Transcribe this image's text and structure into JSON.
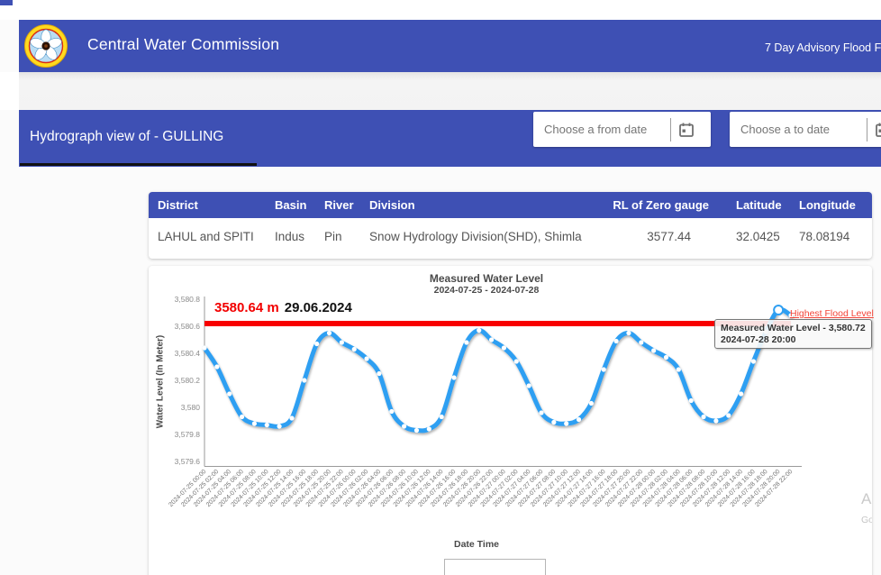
{
  "header": {
    "brand": "Central Water Commission",
    "nav_advisory": "7 Day Advisory Flood F",
    "accent_color": "#3e50b4"
  },
  "subheader": {
    "title": "Hydrograph view of - GULLING",
    "from_date_placeholder": "Choose a from date",
    "to_date_placeholder": "Choose a to date"
  },
  "station_table": {
    "columns": [
      "District",
      "Basin",
      "River",
      "Division",
      "RL of Zero gauge",
      "Latitude",
      "Longitude"
    ],
    "rows": [
      [
        "LAHUL and SPITI",
        "Indus",
        "Pin",
        "Snow Hydrology Division(SHD), Shimla",
        "3577.44",
        "32.0425",
        "78.08194"
      ]
    ]
  },
  "chart_data": {
    "type": "line",
    "title": "Measured Water Level",
    "subtitle": "2024-07-25 - 2024-07-28",
    "xlabel": "Date Time",
    "ylabel": "Water Level (In Meter)",
    "ylim": [
      3579.6,
      3580.8
    ],
    "y_tick_labels": [
      "3,580.8",
      "3,580.6",
      "3,580.4",
      "3,580.2",
      "3,580",
      "3,579.8",
      "3,579.6"
    ],
    "line_color": "#2f9ff2",
    "marker_color": "#ffffff",
    "grid": false,
    "legend_position": "bottom-center",
    "flood_level": {
      "value": 3580.64,
      "label": "Highest Flood Level",
      "annotation_value": "3580.64 m",
      "annotation_date": "29.06.2024",
      "color": "#f80000"
    },
    "tooltip": {
      "line1": "Measured Water Level - 3,580.72",
      "line2": "2024-07-28 20:00"
    },
    "hover_point_index": 46,
    "x": [
      "2024-07-25 00:00",
      "2024-07-25 02:00",
      "2024-07-25 04:00",
      "2024-07-25 06:00",
      "2024-07-25 08:00",
      "2024-07-25 10:00",
      "2024-07-25 12:00",
      "2024-07-25 14:00",
      "2024-07-25 16:00",
      "2024-07-25 18:00",
      "2024-07-25 20:00",
      "2024-07-25 22:00",
      "2024-07-26 00:00",
      "2024-07-26 02:00",
      "2024-07-26 04:00",
      "2024-07-26 06:00",
      "2024-07-26 08:00",
      "2024-07-26 10:00",
      "2024-07-26 12:00",
      "2024-07-26 14:00",
      "2024-07-26 16:00",
      "2024-07-26 18:00",
      "2024-07-26 20:00",
      "2024-07-26 22:00",
      "2024-07-27 00:00",
      "2024-07-27 02:00",
      "2024-07-27 04:00",
      "2024-07-27 06:00",
      "2024-07-27 08:00",
      "2024-07-27 10:00",
      "2024-07-27 12:00",
      "2024-07-27 14:00",
      "2024-07-27 16:00",
      "2024-07-27 18:00",
      "2024-07-27 20:00",
      "2024-07-27 22:00",
      "2024-07-28 00:00",
      "2024-07-28 02:00",
      "2024-07-28 04:00",
      "2024-07-28 06:00",
      "2024-07-28 08:00",
      "2024-07-28 10:00",
      "2024-07-28 12:00",
      "2024-07-28 14:00",
      "2024-07-28 16:00",
      "2024-07-28 18:00",
      "2024-07-28 20:00",
      "2024-07-28 22:00"
    ],
    "values": [
      3580.44,
      3580.3,
      3580.1,
      3579.93,
      3579.88,
      3579.87,
      3579.86,
      3579.92,
      3580.2,
      3580.47,
      3580.55,
      3580.48,
      3580.43,
      3580.36,
      3580.25,
      3579.97,
      3579.86,
      3579.83,
      3579.84,
      3579.93,
      3580.22,
      3580.48,
      3580.57,
      3580.5,
      3580.44,
      3580.34,
      3580.16,
      3579.96,
      3579.89,
      3579.88,
      3579.91,
      3580.03,
      3580.28,
      3580.49,
      3580.55,
      3580.48,
      3580.42,
      3580.37,
      3580.28,
      3580.05,
      3579.93,
      3579.9,
      3579.94,
      3580.1,
      3580.34,
      3580.56,
      3580.72,
      3580.68
    ]
  },
  "watermark": {
    "line1": "Ac",
    "line2": "Go"
  }
}
